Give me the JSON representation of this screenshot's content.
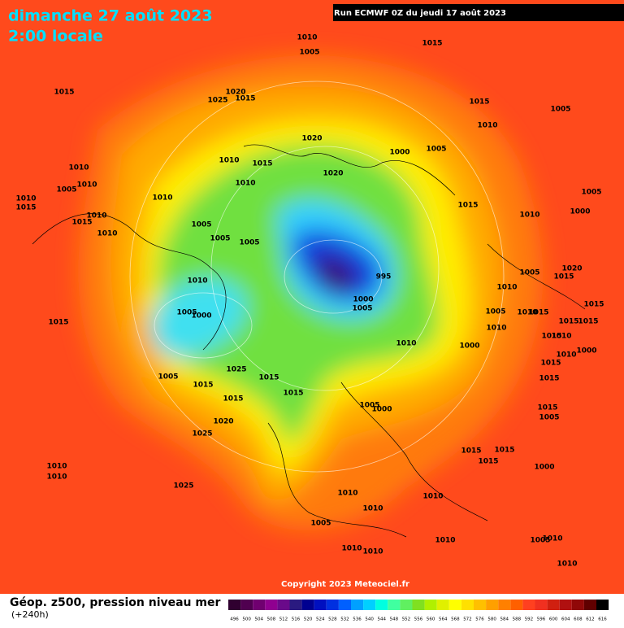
{
  "header": {
    "date": "dimanche 27 août 2023",
    "time": "2:00 locale",
    "run": "Run ECMWF 0Z du jeudi 17 août 2023"
  },
  "footer": {
    "copyright": "Copyright 2023 Meteociel.fr",
    "field": "Géop. z500, pression niveau mer",
    "lead": "(+240h)"
  },
  "isobar_labels": [
    "1010",
    "1005",
    "1015",
    "1015",
    "1020",
    "1025",
    "1015",
    "1015",
    "1005",
    "1010",
    "1020",
    "1000",
    "1005",
    "1010",
    "1015",
    "1010",
    "1020",
    "1010",
    "1005",
    "1010",
    "1010",
    "1015",
    "1010",
    "1005",
    "1015",
    "1010",
    "1015",
    "1010",
    "1000",
    "1005",
    "1010",
    "1005",
    "1005",
    "1010",
    "995",
    "1005",
    "1020",
    "1015",
    "1010",
    "1000",
    "1005",
    "1005",
    "1000",
    "1015",
    "1005",
    "1010",
    "1015",
    "1015",
    "1015",
    "1015",
    "1010",
    "1010",
    "1010",
    "1000",
    "1015",
    "1000",
    "1015",
    "1010",
    "1025",
    "1015",
    "1005",
    "1015",
    "1015",
    "1015",
    "1015",
    "1005",
    "1000",
    "1015",
    "1005",
    "1020",
    "1025",
    "1015",
    "1015",
    "1015",
    "1010",
    "1010",
    "1000",
    "1025",
    "1010",
    "1010",
    "1010",
    "1005",
    "1010",
    "1005",
    "1010",
    "1010",
    "1010",
    "1010"
  ],
  "scale": [
    {
      "value": 496,
      "color": "#300030"
    },
    {
      "value": 500,
      "color": "#500050"
    },
    {
      "value": 504,
      "color": "#700070"
    },
    {
      "value": 508,
      "color": "#900090"
    },
    {
      "value": 512,
      "color": "#6a0a8a"
    },
    {
      "value": 516,
      "color": "#2a1a80"
    },
    {
      "value": 520,
      "color": "#000090"
    },
    {
      "value": 524,
      "color": "#0010c0"
    },
    {
      "value": 528,
      "color": "#0030e0"
    },
    {
      "value": 532,
      "color": "#0060ff"
    },
    {
      "value": 536,
      "color": "#00a0ff"
    },
    {
      "value": 540,
      "color": "#00d0ff"
    },
    {
      "value": 544,
      "color": "#00ffe0"
    },
    {
      "value": 548,
      "color": "#40ffa0"
    },
    {
      "value": 552,
      "color": "#60f060"
    },
    {
      "value": 556,
      "color": "#80e020"
    },
    {
      "value": 560,
      "color": "#b0f000"
    },
    {
      "value": 564,
      "color": "#e0f000"
    },
    {
      "value": 568,
      "color": "#ffff00"
    },
    {
      "value": 572,
      "color": "#ffe000"
    },
    {
      "value": 576,
      "color": "#ffc000"
    },
    {
      "value": 580,
      "color": "#ffa000"
    },
    {
      "value": 584,
      "color": "#ff8000"
    },
    {
      "value": 588,
      "color": "#ff6000"
    },
    {
      "value": 592,
      "color": "#ff4020"
    },
    {
      "value": 596,
      "color": "#f03020"
    },
    {
      "value": 600,
      "color": "#d02010"
    },
    {
      "value": 604,
      "color": "#b01010"
    },
    {
      "value": 608,
      "color": "#900808"
    },
    {
      "value": 612,
      "color": "#600000"
    },
    {
      "value": 616,
      "color": "#000000"
    }
  ]
}
